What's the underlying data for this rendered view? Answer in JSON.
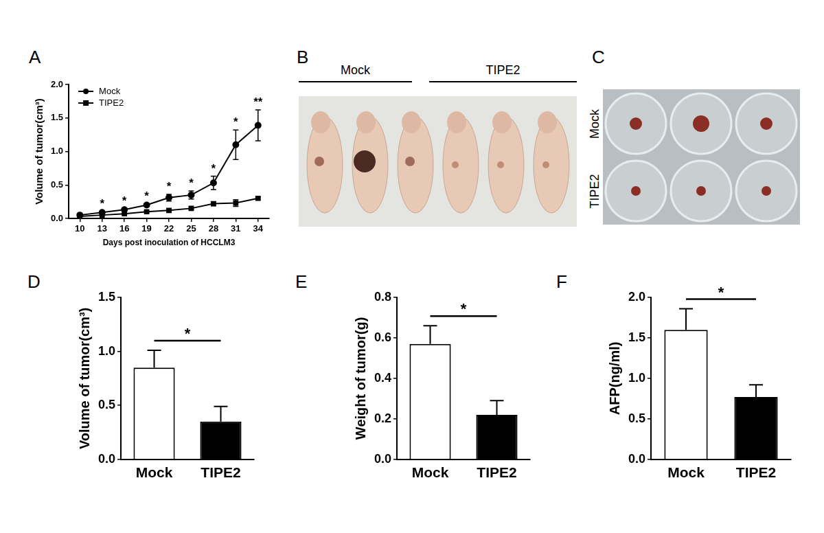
{
  "chart_data": [
    {
      "panel": "A",
      "type": "line",
      "x_label": "Days post inoculation of HCCLM3",
      "y_label": "Volume of tumor(cm³)",
      "categories": [
        "10",
        "13",
        "16",
        "19",
        "22",
        "25",
        "28",
        "31",
        "34"
      ],
      "series": [
        {
          "name": "Mock",
          "color": "#000000",
          "marker": "circle",
          "values": [
            0.05,
            0.09,
            0.13,
            0.2,
            0.31,
            0.35,
            0.53,
            1.1,
            1.39
          ],
          "errors": [
            0.01,
            0.01,
            0.02,
            0.02,
            0.05,
            0.06,
            0.1,
            0.22,
            0.23
          ]
        },
        {
          "name": "TIPE2",
          "color": "#000000",
          "marker": "square",
          "values": [
            0.03,
            0.05,
            0.07,
            0.1,
            0.12,
            0.15,
            0.22,
            0.23,
            0.3
          ],
          "errors": [
            0.01,
            0.01,
            0.01,
            0.01,
            0.02,
            0.02,
            0.03,
            0.05,
            0.02
          ]
        }
      ],
      "ylim": [
        0,
        2
      ],
      "yticks": [
        {
          "value": 0,
          "label": "0.0"
        },
        {
          "value": 0.5,
          "label": "0.5"
        },
        {
          "value": 1,
          "label": "1.0"
        },
        {
          "value": 1.5,
          "label": "1.5"
        },
        {
          "value": 2,
          "label": "2.0"
        }
      ],
      "grid": false,
      "legend": "upper left",
      "annotations": [
        {
          "x": "13",
          "text": "*"
        },
        {
          "x": "16",
          "text": "*"
        },
        {
          "x": "19",
          "text": "*"
        },
        {
          "x": "22",
          "text": "*"
        },
        {
          "x": "25",
          "text": "*"
        },
        {
          "x": "28",
          "text": "*"
        },
        {
          "x": "31",
          "text": "*"
        },
        {
          "x": "34",
          "text": "**"
        }
      ]
    },
    {
      "panel": "D",
      "type": "bar",
      "y_label": "Volume of tumor(cm³)",
      "categories": [
        "Mock",
        "TIPE2"
      ],
      "values": [
        0.85,
        0.35
      ],
      "errors": [
        0.16,
        0.14
      ],
      "colors": [
        "#ffffff",
        "#000000"
      ],
      "ylim": [
        0,
        1.5
      ],
      "yticks": [
        {
          "value": 0,
          "label": "0.0"
        },
        {
          "value": 0.5,
          "label": "0.5"
        },
        {
          "value": 1,
          "label": "1.0"
        },
        {
          "value": 1.5,
          "label": "1.5"
        }
      ],
      "grid": false,
      "annotations": [
        {
          "between": [
            "Mock",
            "TIPE2"
          ],
          "text": "*"
        }
      ]
    },
    {
      "panel": "E",
      "type": "bar",
      "y_label": "Weight of tumor(g)",
      "categories": [
        "Mock",
        "TIPE2"
      ],
      "values": [
        0.57,
        0.22
      ],
      "errors": [
        0.09,
        0.07
      ],
      "colors": [
        "#ffffff",
        "#000000"
      ],
      "ylim": [
        0,
        0.8
      ],
      "yticks": [
        {
          "value": 0,
          "label": "0.0"
        },
        {
          "value": 0.2,
          "label": "0.2"
        },
        {
          "value": 0.4,
          "label": "0.4"
        },
        {
          "value": 0.6,
          "label": "0.6"
        },
        {
          "value": 0.8,
          "label": "0.8"
        }
      ],
      "grid": false,
      "annotations": [
        {
          "between": [
            "Mock",
            "TIPE2"
          ],
          "text": "*"
        }
      ]
    },
    {
      "panel": "F",
      "type": "bar",
      "y_label": "AFP(ng/ml)",
      "categories": [
        "Mock",
        "TIPE2"
      ],
      "values": [
        1.6,
        0.77
      ],
      "errors": [
        0.26,
        0.15
      ],
      "colors": [
        "#ffffff",
        "#000000"
      ],
      "ylim": [
        0,
        2
      ],
      "yticks": [
        {
          "value": 0,
          "label": "0.0"
        },
        {
          "value": 0.5,
          "label": "0.5"
        },
        {
          "value": 1,
          "label": "1.0"
        },
        {
          "value": 1.5,
          "label": "1.5"
        },
        {
          "value": 2,
          "label": "2.0"
        }
      ],
      "grid": false,
      "annotations": [
        {
          "between": [
            "Mock",
            "TIPE2"
          ],
          "text": "*"
        }
      ]
    }
  ],
  "photos": [
    {
      "panel": "B",
      "group_labels": [
        "Mock",
        "TIPE2"
      ]
    },
    {
      "panel": "C",
      "row_labels": [
        "Mock",
        "TIPE2"
      ]
    }
  ]
}
